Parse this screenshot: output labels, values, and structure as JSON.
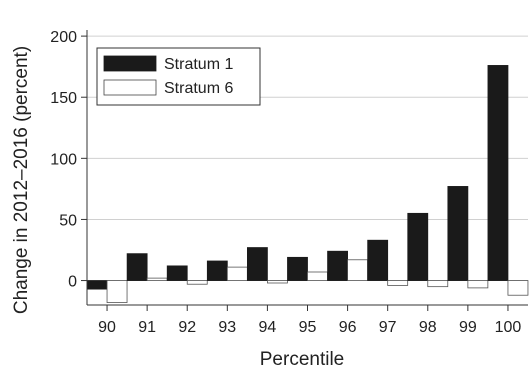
{
  "chart_data": {
    "type": "bar",
    "xlabel": "Percentile",
    "ylabel": "Change in 2012–2016 (percent)",
    "categories": [
      "90",
      "91",
      "92",
      "93",
      "94",
      "95",
      "96",
      "97",
      "98",
      "99",
      "100"
    ],
    "ylim": [
      -20,
      205
    ],
    "yticks": [
      0,
      50,
      100,
      150,
      200
    ],
    "grid": "horizontal",
    "legend_position": "top-left",
    "series": [
      {
        "name": "Stratum 1",
        "color": "#1a1a1a",
        "values": [
          -7,
          22,
          12,
          16,
          27,
          19,
          24,
          33,
          55,
          77,
          176
        ]
      },
      {
        "name": "Stratum 6",
        "color": "#ffffff",
        "values": [
          -18,
          2,
          -3,
          11,
          -2,
          7,
          17,
          -4,
          -5,
          -6,
          -12
        ]
      }
    ]
  }
}
